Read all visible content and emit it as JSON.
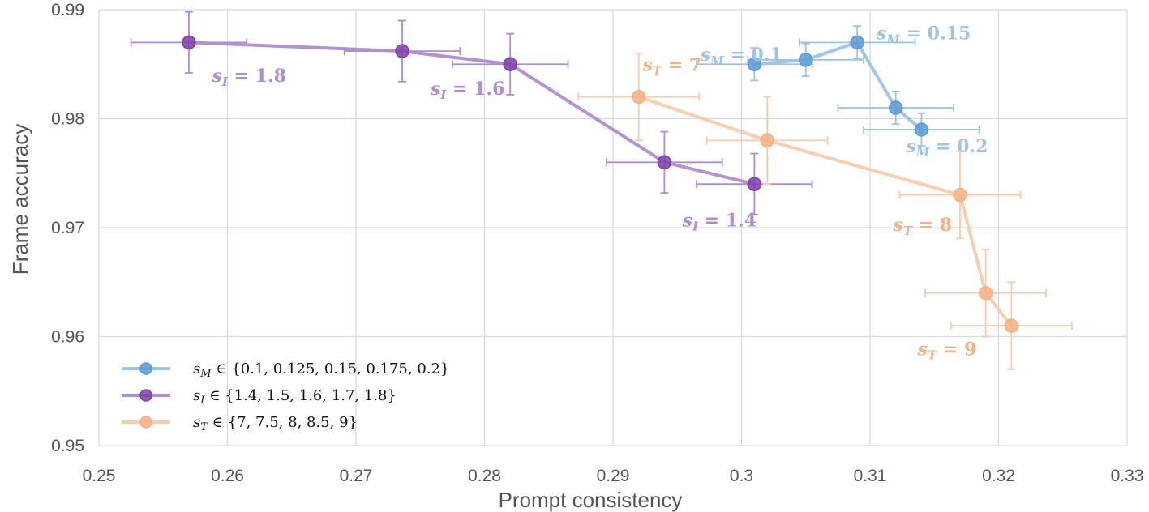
{
  "chart_data": {
    "type": "scatter",
    "xlabel": "Prompt consistency",
    "ylabel": "Frame accuracy",
    "xlim": [
      0.25,
      0.33
    ],
    "ylim": [
      0.95,
      0.99
    ],
    "x_ticks": [
      "0.25",
      "0.26",
      "0.27",
      "0.28",
      "0.29",
      "0.3",
      "0.31",
      "0.32",
      "0.33"
    ],
    "y_ticks": [
      "0.95",
      "0.96",
      "0.97",
      "0.98",
      "0.99"
    ],
    "grid": true,
    "legend_position": "bottom-left",
    "series": [
      {
        "id": "sM",
        "symbol": "s",
        "subscript": "M",
        "legend_rest": " ∈ {0.1, 0.125, 0.15, 0.175, 0.2}",
        "color": "#5B9BD5",
        "line_color": "#9DC3E6",
        "points": [
          {
            "x": 0.301,
            "y": 0.985,
            "xerr": 0.0045,
            "yerr": 0.0015
          },
          {
            "x": 0.305,
            "y": 0.9854,
            "xerr": 0.0045,
            "yerr": 0.0015
          },
          {
            "x": 0.309,
            "y": 0.987,
            "xerr": 0.0045,
            "yerr": 0.0015
          },
          {
            "x": 0.312,
            "y": 0.981,
            "xerr": 0.0045,
            "yerr": 0.0015
          },
          {
            "x": 0.314,
            "y": 0.979,
            "xerr": 0.0045,
            "yerr": 0.0015
          }
        ],
        "annotations": [
          {
            "text": " = 0.1",
            "x": 0.2968,
            "y": 0.9853,
            "anchor": "start"
          },
          {
            "text": " = 0.15",
            "x": 0.3105,
            "y": 0.9873,
            "anchor": "start"
          },
          {
            "text": " = 0.2",
            "x": 0.3128,
            "y": 0.9769,
            "anchor": "start"
          }
        ]
      },
      {
        "id": "sI",
        "symbol": "s",
        "subscript": "I",
        "legend_rest": " ∈ {1.4, 1.5, 1.6, 1.7, 1.8}",
        "color": "#7E3FA9",
        "line_color": "#B08CD0",
        "points": [
          {
            "x": 0.257,
            "y": 0.987,
            "xerr": 0.0045,
            "yerr": 0.0028
          },
          {
            "x": 0.2736,
            "y": 0.9862,
            "xerr": 0.0045,
            "yerr": 0.0028
          },
          {
            "x": 0.282,
            "y": 0.985,
            "xerr": 0.0045,
            "yerr": 0.0028
          },
          {
            "x": 0.294,
            "y": 0.976,
            "xerr": 0.0045,
            "yerr": 0.0028
          },
          {
            "x": 0.301,
            "y": 0.974,
            "xerr": 0.0045,
            "yerr": 0.0028
          }
        ],
        "annotations": [
          {
            "text": " = 1.8",
            "x": 0.2588,
            "y": 0.9834,
            "anchor": "start"
          },
          {
            "text": " = 1.6",
            "x": 0.2758,
            "y": 0.9822,
            "anchor": "start"
          },
          {
            "text": " = 1.4",
            "x": 0.2954,
            "y": 0.9701,
            "anchor": "start"
          }
        ]
      },
      {
        "id": "sT",
        "symbol": "s",
        "subscript": "T",
        "legend_rest": " ∈ {7, 7.5, 8, 8.5, 9}",
        "color": "#F4B183",
        "line_color": "#F8CBAD",
        "points": [
          {
            "x": 0.292,
            "y": 0.982,
            "xerr": 0.0047,
            "yerr": 0.004
          },
          {
            "x": 0.302,
            "y": 0.978,
            "xerr": 0.0047,
            "yerr": 0.004
          },
          {
            "x": 0.317,
            "y": 0.973,
            "xerr": 0.0047,
            "yerr": 0.004
          },
          {
            "x": 0.319,
            "y": 0.964,
            "xerr": 0.0047,
            "yerr": 0.004
          },
          {
            "x": 0.321,
            "y": 0.961,
            "xerr": 0.0047,
            "yerr": 0.004
          }
        ],
        "annotations": [
          {
            "text": " = 7",
            "x": 0.2923,
            "y": 0.9844,
            "anchor": "start"
          },
          {
            "text": " = 8",
            "x": 0.3118,
            "y": 0.9697,
            "anchor": "start"
          },
          {
            "text": " = 9",
            "x": 0.3137,
            "y": 0.9583,
            "anchor": "start"
          }
        ]
      }
    ]
  }
}
